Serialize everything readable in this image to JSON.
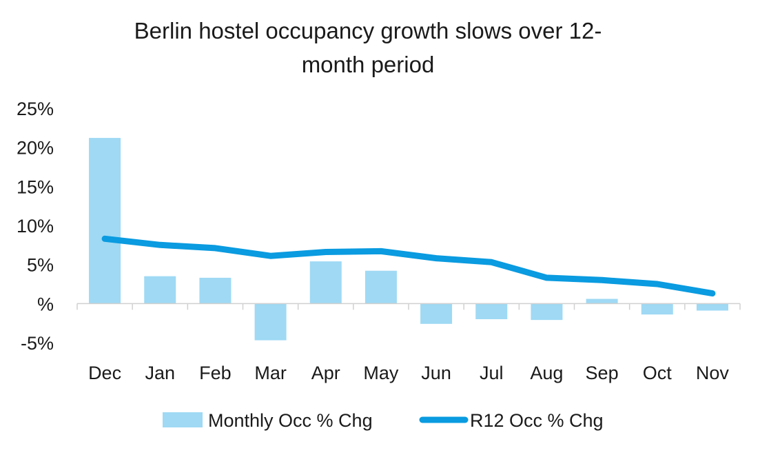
{
  "chart_data": {
    "type": "bar",
    "title_lines": [
      "Berlin hostel occupancy growth slows over 12-",
      "month period"
    ],
    "categories": [
      "Dec",
      "Jan",
      "Feb",
      "Mar",
      "Apr",
      "May",
      "Jun",
      "Jul",
      "Aug",
      "Sep",
      "Oct",
      "Nov"
    ],
    "series": [
      {
        "name": "Monthly Occ % Chg",
        "type": "bar",
        "color": "#9fd9f4",
        "values": [
          21.2,
          3.5,
          3.3,
          -4.7,
          5.4,
          4.2,
          -2.6,
          -2.0,
          -2.1,
          0.6,
          -1.4,
          -0.9
        ]
      },
      {
        "name": "R12 Occ % Chg",
        "type": "line",
        "color": "#0a9be0",
        "values": [
          8.3,
          7.5,
          7.1,
          6.1,
          6.6,
          6.7,
          5.8,
          5.3,
          3.3,
          3.0,
          2.5,
          1.3
        ]
      }
    ],
    "yticks": [
      "25%",
      "20%",
      "15%",
      "10%",
      "5%",
      "%",
      "-5%"
    ],
    "ytick_values": [
      25,
      20,
      15,
      10,
      5,
      0,
      -5
    ],
    "ylim": [
      -5,
      25
    ],
    "grid": false,
    "legend_position": "bottom"
  }
}
